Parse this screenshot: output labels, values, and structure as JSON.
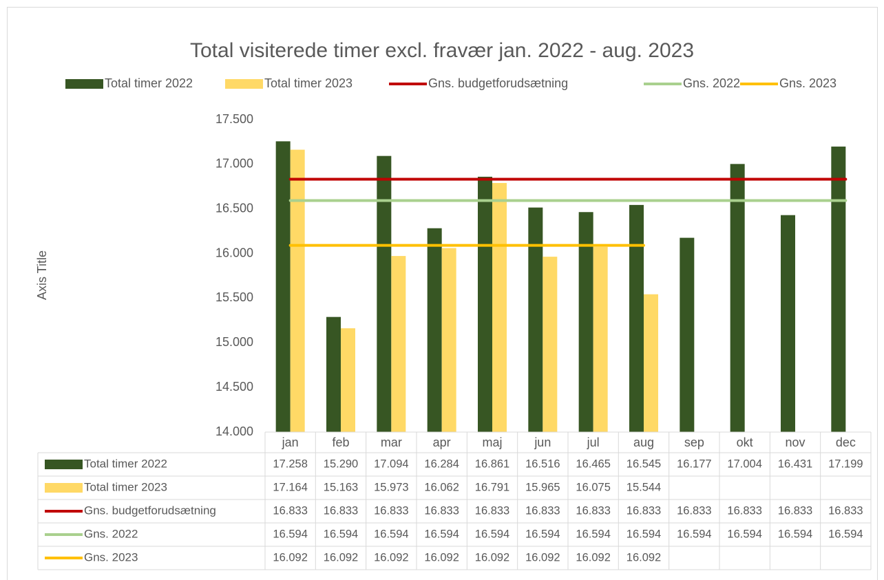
{
  "chart_data": {
    "type": "bar",
    "title": "Total visiterede timer excl. fravær jan. 2022 - aug. 2023",
    "ylabel": "Axis Title",
    "categories": [
      "jan",
      "feb",
      "mar",
      "apr",
      "maj",
      "jun",
      "jul",
      "aug",
      "sep",
      "okt",
      "nov",
      "dec"
    ],
    "ylim": [
      14000,
      17500
    ],
    "yticks": [
      {
        "value": 14000,
        "label": "14.000"
      },
      {
        "value": 14500,
        "label": "14.500"
      },
      {
        "value": 15000,
        "label": "15.000"
      },
      {
        "value": 15500,
        "label": "15.500"
      },
      {
        "value": 16000,
        "label": "16.000"
      },
      {
        "value": 16500,
        "label": "16.500"
      },
      {
        "value": 17000,
        "label": "17.000"
      },
      {
        "value": 17500,
        "label": "17.500"
      }
    ],
    "legend": "top",
    "data_table": true,
    "series": [
      {
        "name": "Total timer 2022",
        "type": "bar",
        "color": "#375623",
        "values": [
          17258,
          15290,
          17094,
          16284,
          16861,
          16516,
          16465,
          16545,
          16177,
          17004,
          16431,
          17199
        ],
        "value_labels": [
          "17.258",
          "15.290",
          "17.094",
          "16.284",
          "16.861",
          "16.516",
          "16.465",
          "16.545",
          "16.177",
          "17.004",
          "16.431",
          "17.199"
        ]
      },
      {
        "name": "Total timer 2023",
        "type": "bar",
        "color": "#ffd966",
        "values": [
          17164,
          15163,
          15973,
          16062,
          16791,
          15965,
          16075,
          15544,
          null,
          null,
          null,
          null
        ],
        "value_labels": [
          "17.164",
          "15.163",
          "15.973",
          "16.062",
          "16.791",
          "15.965",
          "16.075",
          "15.544",
          null,
          null,
          null,
          null
        ]
      },
      {
        "name": "Gns. budgetforudsætning",
        "type": "line",
        "color": "#c00000",
        "values": [
          16833,
          16833,
          16833,
          16833,
          16833,
          16833,
          16833,
          16833,
          16833,
          16833,
          16833,
          16833
        ],
        "value_labels": [
          "16.833",
          "16.833",
          "16.833",
          "16.833",
          "16.833",
          "16.833",
          "16.833",
          "16.833",
          "16.833",
          "16.833",
          "16.833",
          "16.833"
        ]
      },
      {
        "name": "Gns. 2022",
        "type": "line",
        "color": "#a9d08e",
        "values": [
          16594,
          16594,
          16594,
          16594,
          16594,
          16594,
          16594,
          16594,
          16594,
          16594,
          16594,
          16594
        ],
        "value_labels": [
          "16.594",
          "16.594",
          "16.594",
          "16.594",
          "16.594",
          "16.594",
          "16.594",
          "16.594",
          "16.594",
          "16.594",
          "16.594",
          "16.594"
        ]
      },
      {
        "name": "Gns. 2023",
        "type": "line",
        "color": "#ffc000",
        "values": [
          16092,
          16092,
          16092,
          16092,
          16092,
          16092,
          16092,
          16092,
          null,
          null,
          null,
          null
        ],
        "value_labels": [
          "16.092",
          "16.092",
          "16.092",
          "16.092",
          "16.092",
          "16.092",
          "16.092",
          "16.092",
          null,
          null,
          null,
          null
        ]
      }
    ]
  }
}
